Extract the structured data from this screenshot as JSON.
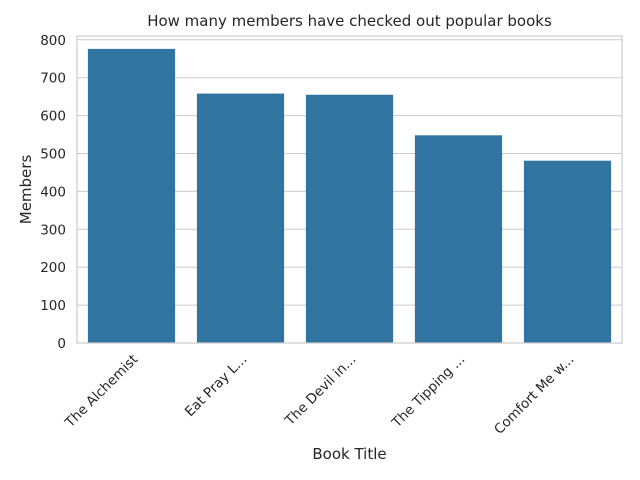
{
  "chart_data": {
    "type": "bar",
    "title": "How many members have checked out popular books",
    "xlabel": "Book Title",
    "ylabel": "Members",
    "categories": [
      "The Alchemist",
      "Eat  Pray  L...",
      "The Devil in...",
      "The Tipping ...",
      "Comfort Me w..."
    ],
    "values": [
      776,
      658,
      655,
      548,
      481
    ],
    "ylim": [
      0,
      810
    ],
    "yticks": [
      0,
      100,
      200,
      300,
      400,
      500,
      600,
      700,
      800
    ],
    "grid": true,
    "bar_color": "#3274a1",
    "grid_color": "#cccccc",
    "axes_edge_color": "#cccccc"
  }
}
